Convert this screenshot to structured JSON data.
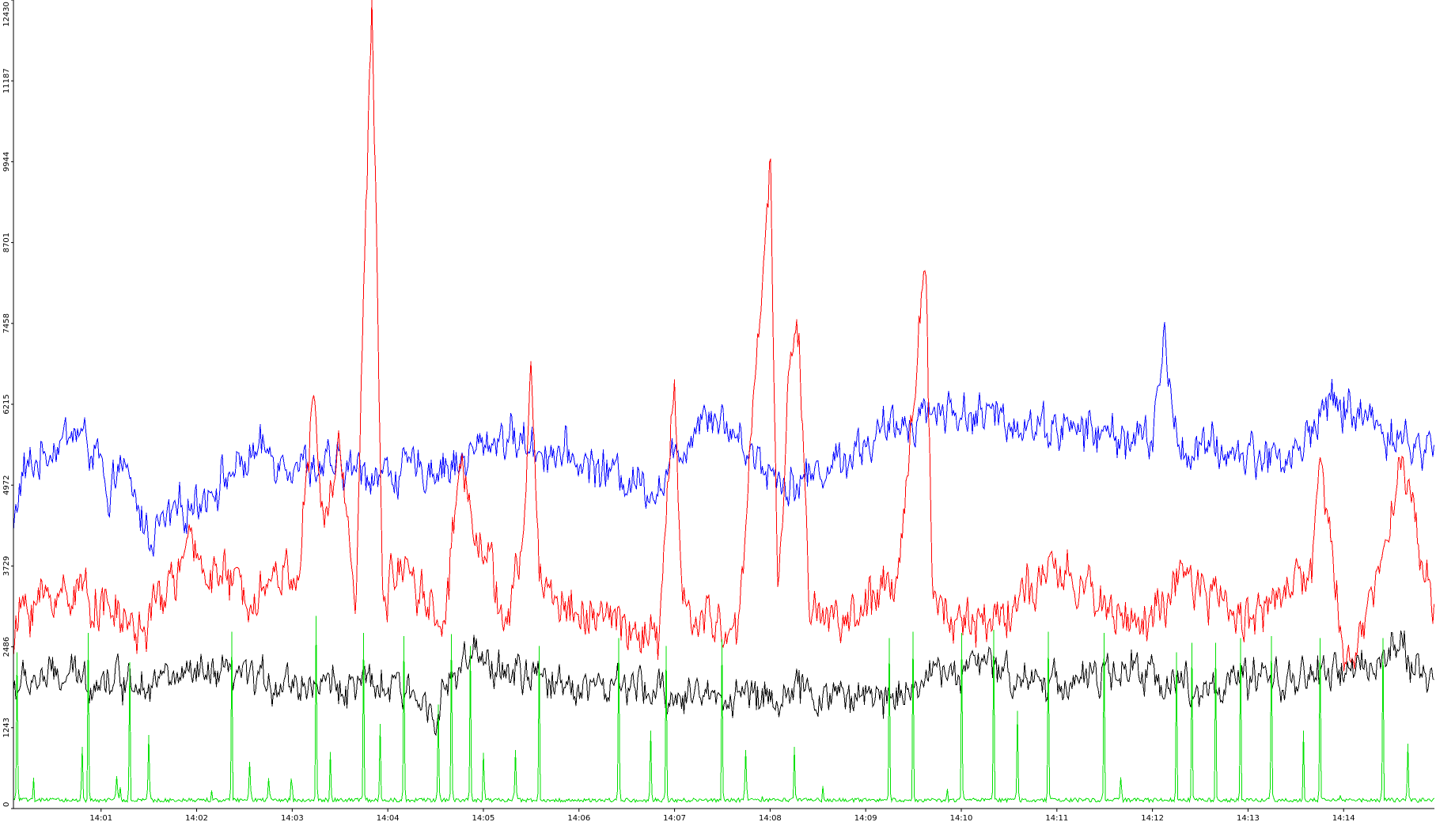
{
  "chart_data": {
    "type": "line",
    "title": "",
    "xlabel": "",
    "ylabel": "",
    "ylim": [
      0,
      12430
    ],
    "y_ticks": [
      "0",
      "1243",
      "2486",
      "3729",
      "4972",
      "6215",
      "7458",
      "8701",
      "9944",
      "11187",
      "12430"
    ],
    "xlim": [
      "14:00:05",
      "14:14:57"
    ],
    "x_ticks": [
      "14:01",
      "14:02",
      "14:03",
      "14:04",
      "14:05",
      "14:06",
      "14:07",
      "14:08",
      "14:09",
      "14:10",
      "14:11",
      "14:12",
      "14:13",
      "14:14"
    ],
    "grid": false,
    "legend": "none",
    "series": [
      {
        "color": "#0000ff",
        "baseline": 5470,
        "noise": 230,
        "points": [
          [
            "14:00:05",
            4250
          ],
          [
            "14:00:10",
            5100
          ],
          [
            "14:00:30",
            5600
          ],
          [
            "14:00:45",
            5800
          ],
          [
            "14:01:00",
            5350
          ],
          [
            "14:01:05",
            4270
          ],
          [
            "14:01:10",
            5400
          ],
          [
            "14:01:30",
            4200
          ],
          [
            "14:02:40",
            5500
          ],
          [
            "14:03:15",
            5250
          ],
          [
            "14:04:00",
            5150
          ],
          [
            "14:04:45",
            5300
          ],
          [
            "14:05:10",
            5750
          ],
          [
            "14:06:50",
            4930
          ],
          [
            "14:07:20",
            6200
          ],
          [
            "14:08:00",
            5200
          ],
          [
            "14:08:15",
            4980
          ],
          [
            "14:09:40",
            6150
          ],
          [
            "14:12:00",
            5650
          ],
          [
            "14:12:08",
            7300
          ],
          [
            "14:12:15",
            5550
          ],
          [
            "14:13:30",
            5400
          ],
          [
            "14:13:47",
            6200
          ],
          [
            "14:14:10",
            6100
          ],
          [
            "14:14:40",
            5600
          ],
          [
            "14:14:57",
            5500
          ]
        ]
      },
      {
        "color": "#ff0000",
        "baseline": 3150,
        "noise": 260,
        "points": [
          [
            "14:00:05",
            2450
          ],
          [
            "14:00:10",
            3100
          ],
          [
            "14:00:45",
            3400
          ],
          [
            "14:01:25",
            2700
          ],
          [
            "14:01:55",
            3950
          ],
          [
            "14:02:30",
            3300
          ],
          [
            "14:03:05",
            3750
          ],
          [
            "14:03:13",
            6280
          ],
          [
            "14:03:20",
            4300
          ],
          [
            "14:03:30",
            5550
          ],
          [
            "14:03:40",
            3300
          ],
          [
            "14:03:50",
            12450
          ],
          [
            "14:03:57",
            3200
          ],
          [
            "14:04:10",
            3900
          ],
          [
            "14:04:35",
            2750
          ],
          [
            "14:04:45",
            5300
          ],
          [
            "14:05:15",
            2750
          ],
          [
            "14:05:25",
            4100
          ],
          [
            "14:05:30",
            6880
          ],
          [
            "14:05:35",
            3600
          ],
          [
            "14:05:50",
            3100
          ],
          [
            "14:06:20",
            2900
          ],
          [
            "14:06:50",
            2550
          ],
          [
            "14:07:00",
            6600
          ],
          [
            "14:07:05",
            3000
          ],
          [
            "14:07:40",
            2700
          ],
          [
            "14:08:00",
            9990
          ],
          [
            "14:08:05",
            3200
          ],
          [
            "14:08:12",
            6780
          ],
          [
            "14:08:18",
            7310
          ],
          [
            "14:08:25",
            3100
          ],
          [
            "14:08:45",
            2850
          ],
          [
            "14:09:20",
            3400
          ],
          [
            "14:09:35",
            7920
          ],
          [
            "14:09:38",
            8180
          ],
          [
            "14:09:42",
            3200
          ],
          [
            "14:10:10",
            2800
          ],
          [
            "14:11:00",
            3600
          ],
          [
            "14:11:55",
            2800
          ],
          [
            "14:12:20",
            3500
          ],
          [
            "14:13:00",
            2950
          ],
          [
            "14:13:40",
            3650
          ],
          [
            "14:13:45",
            5400
          ],
          [
            "14:14:00",
            2500
          ],
          [
            "14:14:10",
            2400
          ],
          [
            "14:14:35",
            5390
          ],
          [
            "14:14:57",
            3150
          ]
        ]
      },
      {
        "color": "#000000",
        "baseline": 1960,
        "noise": 210,
        "points": [
          [
            "14:00:05",
            1850
          ],
          [
            "14:00:20",
            2000
          ],
          [
            "14:02:30",
            2000
          ],
          [
            "14:04:00",
            1850
          ],
          [
            "14:04:30",
            1600
          ],
          [
            "14:04:50",
            2300
          ],
          [
            "14:05:30",
            2000
          ],
          [
            "14:07:00",
            1750
          ],
          [
            "14:08:40",
            1750
          ],
          [
            "14:09:10",
            1700
          ],
          [
            "14:09:40",
            2050
          ],
          [
            "14:10:10",
            2200
          ],
          [
            "14:11:00",
            1950
          ],
          [
            "14:11:50",
            2100
          ],
          [
            "14:12:30",
            1850
          ],
          [
            "14:13:30",
            2000
          ],
          [
            "14:14:15",
            2150
          ],
          [
            "14:14:30",
            2550
          ],
          [
            "14:14:57",
            1900
          ]
        ]
      },
      {
        "color": "#00e000",
        "baseline": 130,
        "noise": 30,
        "spikes": [
          [
            "14:00:07",
            2400
          ],
          [
            "14:00:48",
            950
          ],
          [
            "14:00:52",
            2700
          ],
          [
            "14:01:10",
            500
          ],
          [
            "14:01:18",
            2250
          ],
          [
            "14:01:30",
            1130
          ],
          [
            "14:02:22",
            2720
          ],
          [
            "14:02:33",
            720
          ],
          [
            "14:02:45",
            470
          ],
          [
            "14:03:15",
            2960
          ],
          [
            "14:03:24",
            870
          ],
          [
            "14:03:45",
            2700
          ],
          [
            "14:03:55",
            1300
          ],
          [
            "14:04:10",
            2650
          ],
          [
            "14:04:32",
            1600
          ],
          [
            "14:04:40",
            2680
          ],
          [
            "14:04:52",
            2500
          ],
          [
            "14:05:00",
            860
          ],
          [
            "14:05:20",
            900
          ],
          [
            "14:05:35",
            2500
          ],
          [
            "14:06:25",
            2620
          ],
          [
            "14:06:45",
            1200
          ],
          [
            "14:06:55",
            2500
          ],
          [
            "14:07:30",
            2600
          ],
          [
            "14:07:45",
            900
          ],
          [
            "14:08:15",
            950
          ],
          [
            "14:09:15",
            2620
          ],
          [
            "14:09:30",
            2720
          ],
          [
            "14:10:00",
            2700
          ],
          [
            "14:10:20",
            2750
          ],
          [
            "14:10:35",
            1500
          ],
          [
            "14:10:55",
            2720
          ],
          [
            "14:11:30",
            2700
          ],
          [
            "14:11:40",
            480
          ],
          [
            "14:12:15",
            2400
          ],
          [
            "14:12:25",
            2550
          ],
          [
            "14:12:40",
            2550
          ],
          [
            "14:12:55",
            2620
          ],
          [
            "14:13:15",
            2650
          ],
          [
            "14:13:35",
            1200
          ],
          [
            "14:13:45",
            2620
          ],
          [
            "14:14:25",
            2620
          ],
          [
            "14:14:40",
            1000
          ]
        ]
      }
    ]
  }
}
